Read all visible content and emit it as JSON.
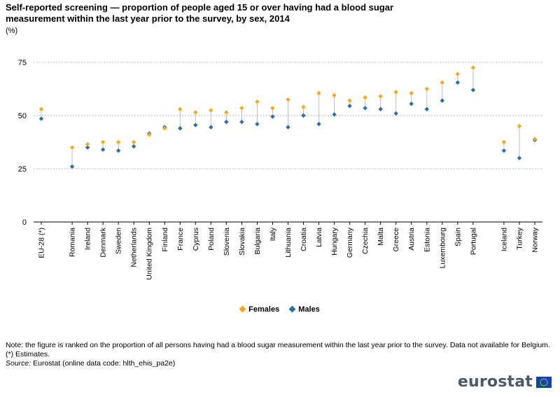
{
  "title_line1": "Self-reported screening — proportion of people aged 15 or over having had a blood sugar",
  "title_line2": "measurement within the last year prior to the survey, by sex, 2014",
  "unit": "(%)",
  "legend": {
    "females": "Females",
    "males": "Males"
  },
  "notes": {
    "line1": "Note: the figure is ranked on the proportion of all persons having had a blood sugar measurement within the last year prior to the survey. Data not available for Belgium.",
    "line2": "(*) Estimates.",
    "source_label": "Source:",
    "source_text": " Eurostat (online data code: hlth_ehis_pa2e)"
  },
  "logo": "eurostat",
  "colors": {
    "females": "#f6a623",
    "males": "#2e6ca4",
    "grid": "#b4b4b4",
    "connector": "#bdbdbd"
  },
  "chart_data": {
    "type": "dot",
    "title": "Self-reported screening — proportion of people aged 15 or over having had a blood sugar measurement within the last year prior to the survey, by sex, 2014",
    "ylabel": "(%)",
    "ylim": [
      0,
      75
    ],
    "yticks": [
      0,
      25,
      50,
      75
    ],
    "grid": true,
    "legend_position": "bottom",
    "categories": [
      "EU-28 (*)",
      "Romania",
      "Ireland",
      "Denmark",
      "Sweden",
      "Netherlands",
      "United Kingdom",
      "Finland",
      "France",
      "Cyprus",
      "Poland",
      "Slovenia",
      "Slovakia",
      "Bulgaria",
      "Italy",
      "Lithuania",
      "Croatia",
      "Latvia",
      "Hungary",
      "Germany",
      "Czechia",
      "Malta",
      "Greece",
      "Austria",
      "Estonia",
      "Luxembourg",
      "Spain",
      "Portugal",
      "Iceland",
      "Turkey",
      "Norway"
    ],
    "gap_after": [
      0,
      27
    ],
    "series": [
      {
        "name": "Females",
        "values": [
          53.0,
          35.0,
          36.5,
          37.5,
          37.5,
          37.5,
          41.0,
          44.0,
          53.0,
          51.5,
          52.5,
          51.5,
          53.5,
          56.5,
          53.5,
          57.5,
          54.0,
          60.5,
          59.5,
          57.0,
          58.5,
          59.0,
          61.0,
          60.5,
          62.5,
          65.5,
          69.5,
          72.5,
          37.5,
          45.0,
          39.0
        ]
      },
      {
        "name": "Males",
        "values": [
          48.5,
          26.0,
          35.0,
          34.0,
          33.5,
          35.5,
          41.5,
          44.5,
          44.0,
          45.5,
          44.5,
          47.0,
          47.0,
          46.0,
          49.5,
          44.5,
          50.0,
          46.0,
          50.5,
          54.5,
          53.5,
          53.0,
          51.0,
          55.5,
          53.0,
          57.0,
          65.5,
          62.0,
          33.5,
          30.0,
          38.5
        ]
      }
    ]
  }
}
